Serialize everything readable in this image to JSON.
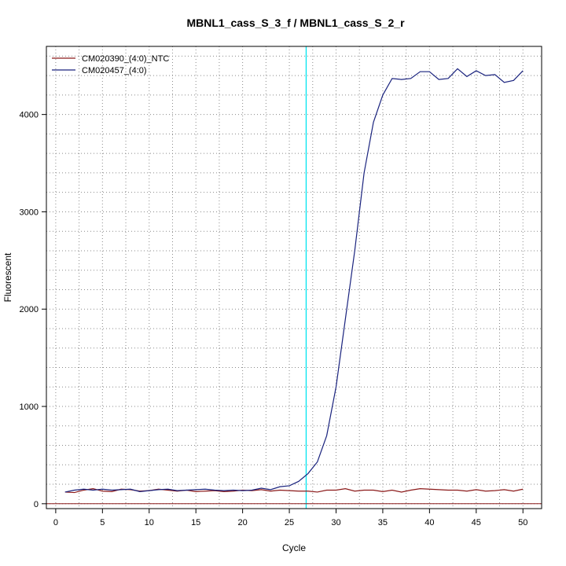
{
  "chart_data": {
    "type": "line",
    "title": "MBNL1_cass_S_3_f / MBNL1_cass_S_2_r",
    "xlabel": "Cycle",
    "ylabel": "Fluorescent",
    "xlim": [
      -1,
      52
    ],
    "ylim": [
      -50,
      4700
    ],
    "x_ticks": [
      0,
      5,
      10,
      15,
      20,
      25,
      30,
      35,
      40,
      45,
      50
    ],
    "y_ticks": [
      0,
      1000,
      2000,
      3000,
      4000
    ],
    "grid": true,
    "legend_position": "top-left",
    "threshold_x": 26.8,
    "threshold_color": "#00e5ee",
    "baseline_y": 0,
    "baseline_color": "#8b1a1a",
    "x": [
      1,
      2,
      3,
      4,
      5,
      6,
      7,
      8,
      9,
      10,
      11,
      12,
      13,
      14,
      15,
      16,
      17,
      18,
      19,
      20,
      21,
      22,
      23,
      24,
      25,
      26,
      27,
      28,
      29,
      30,
      31,
      32,
      33,
      34,
      35,
      36,
      37,
      38,
      39,
      40,
      41,
      42,
      43,
      44,
      45,
      46,
      47,
      48,
      49,
      50
    ],
    "series": [
      {
        "name": "CM020390_(4:0)_NTC",
        "color": "#8b1a1a",
        "values": [
          120,
          115,
          140,
          155,
          130,
          125,
          150,
          145,
          130,
          135,
          150,
          140,
          130,
          140,
          125,
          130,
          135,
          125,
          130,
          140,
          135,
          145,
          130,
          140,
          135,
          130,
          130,
          120,
          140,
          140,
          155,
          130,
          140,
          140,
          125,
          140,
          120,
          140,
          155,
          150,
          145,
          140,
          140,
          130,
          145,
          130,
          135,
          145,
          130,
          150
        ]
      },
      {
        "name": "CM020457_(4:0)",
        "color": "#1a237e",
        "values": [
          120,
          140,
          150,
          140,
          150,
          140,
          145,
          150,
          125,
          135,
          145,
          150,
          135,
          140,
          145,
          150,
          140,
          135,
          140,
          135,
          140,
          160,
          145,
          175,
          185,
          230,
          310,
          430,
          700,
          1200,
          1900,
          2600,
          3400,
          3920,
          4200,
          4370,
          4360,
          4370,
          4440,
          4440,
          4360,
          4370,
          4470,
          4390,
          4450,
          4400,
          4410,
          4330,
          4350,
          4450
        ]
      }
    ]
  }
}
